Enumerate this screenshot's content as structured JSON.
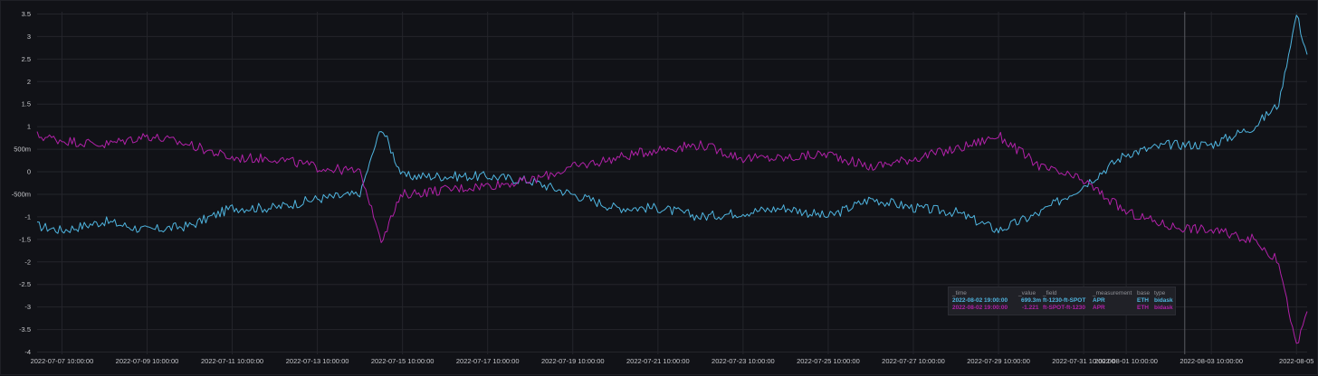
{
  "chart_data": {
    "type": "line",
    "y_ticks": [
      "3.5",
      "3",
      "2.5",
      "2",
      "1.5",
      "1",
      "500m",
      "0",
      "-500m",
      "-1",
      "-1.5",
      "-2",
      "-2.5",
      "-3",
      "-3.5",
      "-4"
    ],
    "y_tick_values": [
      3.5,
      3,
      2.5,
      2,
      1.5,
      1,
      0.5,
      0,
      -0.5,
      -1,
      -1.5,
      -2,
      -2.5,
      -3,
      -3.5,
      -4
    ],
    "ylim": [
      -4.05,
      3.55
    ],
    "x_ticks": [
      {
        "label": "2022-07-07 10:00:00",
        "t": "2022-07-07T10:00:00"
      },
      {
        "label": "2022-07-09 10:00:00",
        "t": "2022-07-09T10:00:00"
      },
      {
        "label": "2022-07-11 10:00:00",
        "t": "2022-07-11T10:00:00"
      },
      {
        "label": "2022-07-13 10:00:00",
        "t": "2022-07-13T10:00:00"
      },
      {
        "label": "2022-07-15 10:00:00",
        "t": "2022-07-15T10:00:00"
      },
      {
        "label": "2022-07-17 10:00:00",
        "t": "2022-07-17T10:00:00"
      },
      {
        "label": "2022-07-19 10:00:00",
        "t": "2022-07-19T10:00:00"
      },
      {
        "label": "2022-07-21 10:00:00",
        "t": "2022-07-21T10:00:00"
      },
      {
        "label": "2022-07-23 10:00:00",
        "t": "2022-07-23T10:00:00"
      },
      {
        "label": "2022-07-25 10:00:00",
        "t": "2022-07-25T10:00:00"
      },
      {
        "label": "2022-07-27 10:00:00",
        "t": "2022-07-27T10:00:00"
      },
      {
        "label": "2022-07-29 10:00:00",
        "t": "2022-07-29T10:00:00"
      },
      {
        "label": "2022-07-31 10:00:00",
        "t": "2022-07-31T10:00:00"
      },
      {
        "label": "2022-08-01 10:00:00",
        "t": "2022-08-01T10:00:00"
      },
      {
        "label": "2022-08-03 10:00:00",
        "t": "2022-08-03T10:00:00"
      },
      {
        "label": "2022-08-05",
        "t": "2022-08-05T10:00:00"
      }
    ],
    "xlim": [
      "2022-07-06T20:00:00",
      "2022-08-05T16:00:00"
    ],
    "cursor_time": "2022-08-02T19:00:00",
    "grid": true,
    "series": [
      {
        "field": "ft-1230-ft-SPOT",
        "color": "#4fb5e0",
        "x": [
          "2022-07-06T20:00:00",
          "2022-07-07T10:00:00",
          "2022-07-08T10:00:00",
          "2022-07-09T10:00:00",
          "2022-07-10T10:00:00",
          "2022-07-11T10:00:00",
          "2022-07-12T10:00:00",
          "2022-07-13T10:00:00",
          "2022-07-14T10:00:00",
          "2022-07-14T22:00:00",
          "2022-07-15T10:00:00",
          "2022-07-16T10:00:00",
          "2022-07-17T10:00:00",
          "2022-07-18T10:00:00",
          "2022-07-19T10:00:00",
          "2022-07-20T10:00:00",
          "2022-07-21T10:00:00",
          "2022-07-22T10:00:00",
          "2022-07-23T10:00:00",
          "2022-07-24T10:00:00",
          "2022-07-25T10:00:00",
          "2022-07-26T10:00:00",
          "2022-07-27T10:00:00",
          "2022-07-28T10:00:00",
          "2022-07-29T10:00:00",
          "2022-07-30T10:00:00",
          "2022-07-31T10:00:00",
          "2022-08-01T10:00:00",
          "2022-08-02T10:00:00",
          "2022-08-03T10:00:00",
          "2022-08-04T10:00:00",
          "2022-08-05T00:00:00",
          "2022-08-05T10:00:00",
          "2022-08-05T16:00:00"
        ],
        "y": [
          -1.2,
          -1.3,
          -1.1,
          -1.3,
          -1.2,
          -0.8,
          -0.8,
          -0.6,
          -0.5,
          1.0,
          -0.1,
          -0.1,
          -0.1,
          -0.2,
          -0.5,
          -0.8,
          -0.8,
          -1.0,
          -0.9,
          -0.8,
          -1.0,
          -0.6,
          -0.8,
          -0.9,
          -1.3,
          -0.9,
          -0.3,
          0.4,
          0.6,
          0.6,
          1.0,
          1.5,
          3.5,
          2.6
        ]
      },
      {
        "field": "ft-SPOT-ft-1230",
        "color": "#b121a8",
        "x": [
          "2022-07-06T20:00:00",
          "2022-07-07T10:00:00",
          "2022-07-08T10:00:00",
          "2022-07-09T10:00:00",
          "2022-07-10T10:00:00",
          "2022-07-11T10:00:00",
          "2022-07-12T10:00:00",
          "2022-07-13T10:00:00",
          "2022-07-14T10:00:00",
          "2022-07-14T22:00:00",
          "2022-07-15T10:00:00",
          "2022-07-16T10:00:00",
          "2022-07-17T10:00:00",
          "2022-07-18T10:00:00",
          "2022-07-19T10:00:00",
          "2022-07-20T10:00:00",
          "2022-07-21T10:00:00",
          "2022-07-22T10:00:00",
          "2022-07-23T10:00:00",
          "2022-07-24T10:00:00",
          "2022-07-25T10:00:00",
          "2022-07-26T10:00:00",
          "2022-07-27T10:00:00",
          "2022-07-28T10:00:00",
          "2022-07-29T10:00:00",
          "2022-07-30T10:00:00",
          "2022-07-31T10:00:00",
          "2022-08-01T10:00:00",
          "2022-08-02T10:00:00",
          "2022-08-03T10:00:00",
          "2022-08-04T10:00:00",
          "2022-08-05T00:00:00",
          "2022-08-05T10:00:00",
          "2022-08-05T16:00:00"
        ],
        "y": [
          0.8,
          0.7,
          0.6,
          0.8,
          0.6,
          0.3,
          0.3,
          0.1,
          0.0,
          -1.5,
          -0.5,
          -0.4,
          -0.3,
          -0.2,
          0.1,
          0.3,
          0.5,
          0.6,
          0.3,
          0.3,
          0.4,
          0.1,
          0.3,
          0.5,
          0.8,
          0.1,
          -0.2,
          -0.9,
          -1.2,
          -1.3,
          -1.5,
          -2.0,
          -3.9,
          -3.1
        ]
      }
    ]
  },
  "legend": {
    "headers": {
      "time": "_time",
      "value": "_value",
      "field": "_field",
      "measurement": "_measurement",
      "base": "base",
      "type": "type"
    },
    "rows": [
      {
        "time": "2022-08-02 19:00:00",
        "value": "699.3m",
        "field": "ft-1230-ft-SPOT",
        "measurement": "APR",
        "base": "ETH",
        "type": "bidask",
        "color": "#4fb5e0"
      },
      {
        "time": "2022-08-02 19:00:00",
        "value": "-1.221",
        "field": "ft-SPOT-ft-1230",
        "measurement": "APR",
        "base": "ETH",
        "type": "bidask",
        "color": "#b121a8"
      }
    ]
  }
}
